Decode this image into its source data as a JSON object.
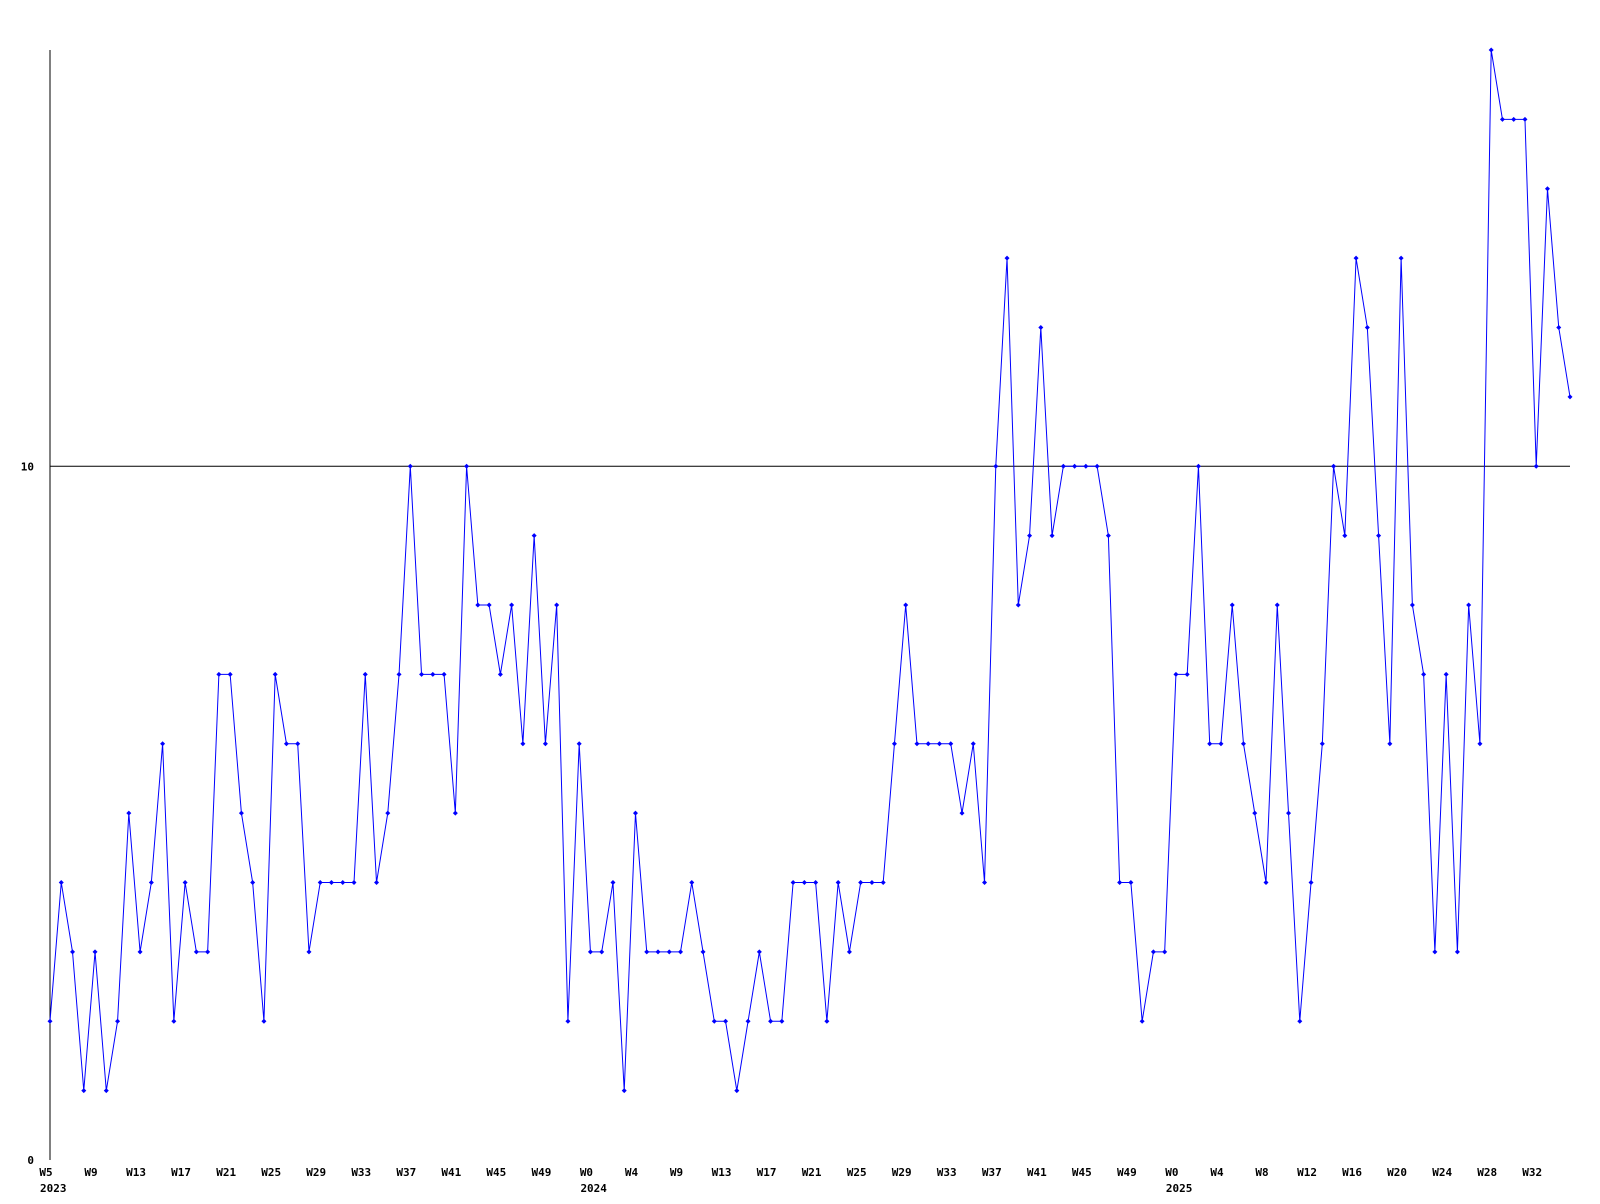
{
  "chart_data": {
    "type": "line",
    "categories": [
      "W5",
      null,
      null,
      null,
      "W9",
      null,
      null,
      null,
      "W13",
      null,
      null,
      null,
      "W17",
      null,
      null,
      null,
      "W21",
      null,
      null,
      null,
      "W25",
      null,
      null,
      null,
      "W29",
      null,
      null,
      null,
      "W33",
      null,
      null,
      null,
      "W37",
      null,
      null,
      null,
      "W41",
      null,
      null,
      null,
      "W45",
      null,
      null,
      null,
      "W49",
      null,
      null,
      null,
      "W0",
      null,
      null,
      null,
      "W4",
      null,
      null,
      null,
      "W9",
      null,
      null,
      null,
      "W13",
      null,
      null,
      null,
      "W17",
      null,
      null,
      null,
      "W21",
      null,
      null,
      null,
      "W25",
      null,
      null,
      null,
      "W29",
      null,
      null,
      null,
      "W33",
      null,
      null,
      null,
      "W37",
      null,
      null,
      null,
      "W41",
      null,
      null,
      null,
      "W45",
      null,
      null,
      null,
      "W49",
      null,
      null,
      null,
      "W0",
      null,
      null,
      null,
      "W4",
      null,
      null,
      null,
      "W8",
      null,
      null,
      null,
      "W12",
      null,
      null,
      null,
      "W16",
      null,
      null,
      null,
      "W20",
      null,
      null,
      null,
      "W24",
      null,
      null,
      null,
      "W28",
      null,
      null,
      null,
      "W32",
      null,
      null,
      null
    ],
    "x_year_labels": [
      "2023",
      "2024",
      "2025"
    ],
    "series": [
      {
        "color": "#0000ff",
        "values": [
          2,
          4,
          3,
          1,
          3,
          1,
          2,
          5,
          3,
          4,
          6,
          2,
          4,
          3,
          3,
          7,
          7,
          5,
          4,
          2,
          7,
          6,
          6,
          3,
          4,
          4,
          4,
          4,
          7,
          4,
          5,
          7,
          10,
          7,
          7,
          7,
          5,
          10,
          8,
          8,
          7,
          8,
          6,
          9,
          6,
          8,
          2,
          6,
          3,
          3,
          4,
          1,
          5,
          3,
          3,
          3,
          3,
          4,
          3,
          2,
          2,
          1,
          2,
          3,
          2,
          2,
          4,
          4,
          4,
          2,
          4,
          3,
          4,
          4,
          4,
          6,
          8,
          6,
          6,
          6,
          6,
          5,
          6,
          4,
          10,
          13,
          8,
          9,
          12,
          9,
          10,
          10,
          10,
          10,
          9,
          4,
          4,
          2,
          3,
          3,
          7,
          7,
          10,
          6,
          6,
          8,
          6,
          5,
          4,
          8,
          5,
          2,
          4,
          6,
          10,
          9,
          13,
          12,
          9,
          6,
          13,
          8,
          7,
          3,
          7,
          3,
          8,
          6,
          16,
          15,
          15,
          15,
          10,
          14,
          12,
          11
        ]
      }
    ],
    "ylim": [
      0,
      16
    ],
    "yticks": [
      0,
      10
    ],
    "grid": true
  }
}
